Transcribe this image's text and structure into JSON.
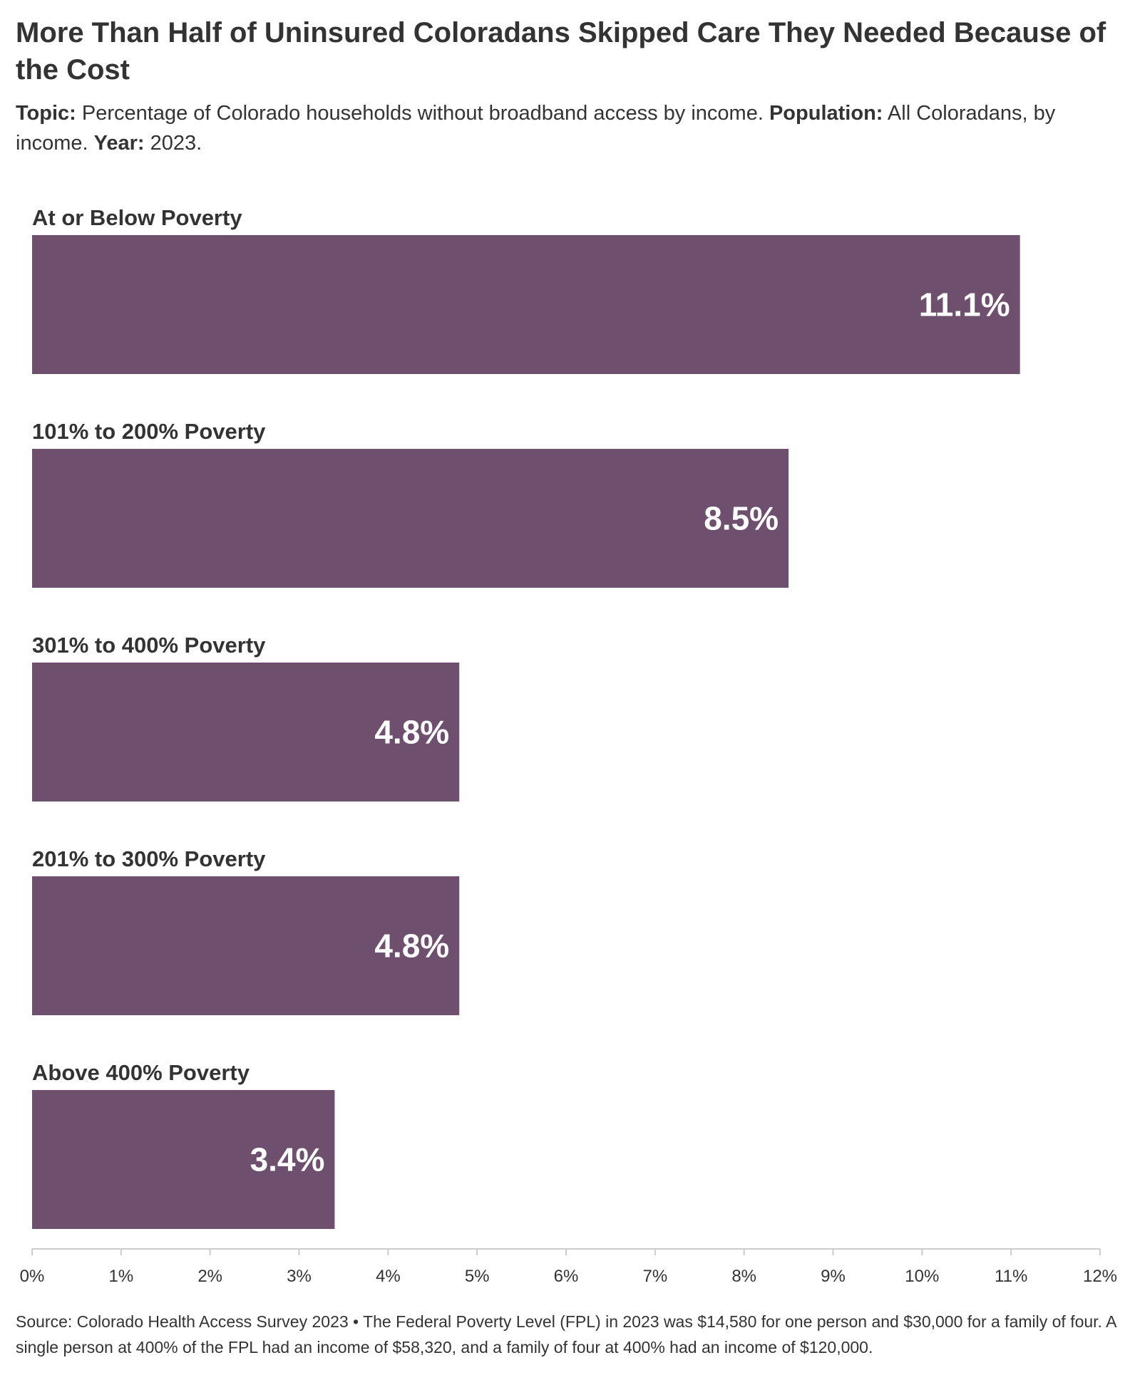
{
  "title": "More Than Half of Uninsured Coloradans Skipped Care They Needed Because of the Cost",
  "subtitle": {
    "topic_label": "Topic:",
    "topic_text": "Percentage of Colorado households without broadband access by income.",
    "population_label": "Population:",
    "population_text": "All Coloradans, by income.",
    "year_label": "Year:",
    "year_text": "2023."
  },
  "colors": {
    "bar": "#6e506e",
    "value_label": "#ffffff",
    "axis": "#cccccc",
    "text": "#333333"
  },
  "chart_data": {
    "type": "bar",
    "orientation": "horizontal",
    "categories": [
      "At or Below Poverty",
      "101% to 200% Poverty",
      "301% to 400% Poverty",
      "201% to 300% Poverty",
      "Above 400% Poverty"
    ],
    "values": [
      11.1,
      8.5,
      4.8,
      4.8,
      3.4
    ],
    "value_labels": [
      "11.1%",
      "8.5%",
      "4.8%",
      "4.8%",
      "3.4%"
    ],
    "xlim": [
      0,
      12
    ],
    "x_ticks": [
      0,
      1,
      2,
      3,
      4,
      5,
      6,
      7,
      8,
      9,
      10,
      11,
      12
    ],
    "x_tick_labels": [
      "0%",
      "1%",
      "2%",
      "3%",
      "4%",
      "5%",
      "6%",
      "7%",
      "8%",
      "9%",
      "10%",
      "11%",
      "12%"
    ],
    "grid": false,
    "legend": "none"
  },
  "source": "Source: Colorado Health Access Survey 2023 • The Federal Poverty Level (FPL) in 2023 was $14,580 for one person and $30,000 for a family of four. A single person at 400% of the FPL had an income of $58,320, and a family of four at 400% had an income of $120,000."
}
